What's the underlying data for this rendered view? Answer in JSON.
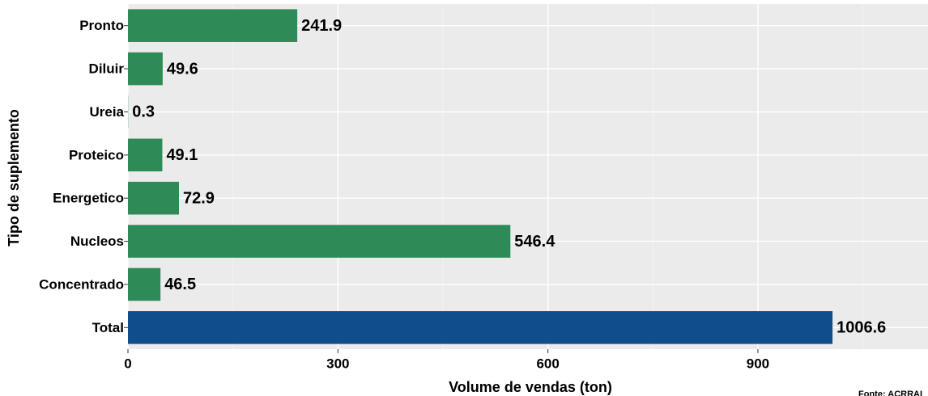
{
  "chart_data": {
    "type": "barh",
    "xlabel": "Volume de vendas (ton)",
    "ylabel": "Tipo de suplemento",
    "caption": "Fonte: ACRRAI",
    "categories": [
      "Pronto",
      "Diluir",
      "Ureia",
      "Proteico",
      "Energetico",
      "Nucleos",
      "Concentrado",
      "Total"
    ],
    "values": [
      241.9,
      49.6,
      0.3,
      49.1,
      72.9,
      546.4,
      46.5,
      1006.6
    ],
    "colors": [
      "#2e8b57",
      "#2e8b57",
      "#2e8b57",
      "#2e8b57",
      "#2e8b57",
      "#2e8b57",
      "#2e8b57",
      "#0f4d8c"
    ],
    "xlim": [
      0,
      1143
    ],
    "xticks": [
      0,
      300,
      600,
      900
    ],
    "xminorticks": [
      150,
      450,
      750,
      1050
    ],
    "grid": true
  }
}
